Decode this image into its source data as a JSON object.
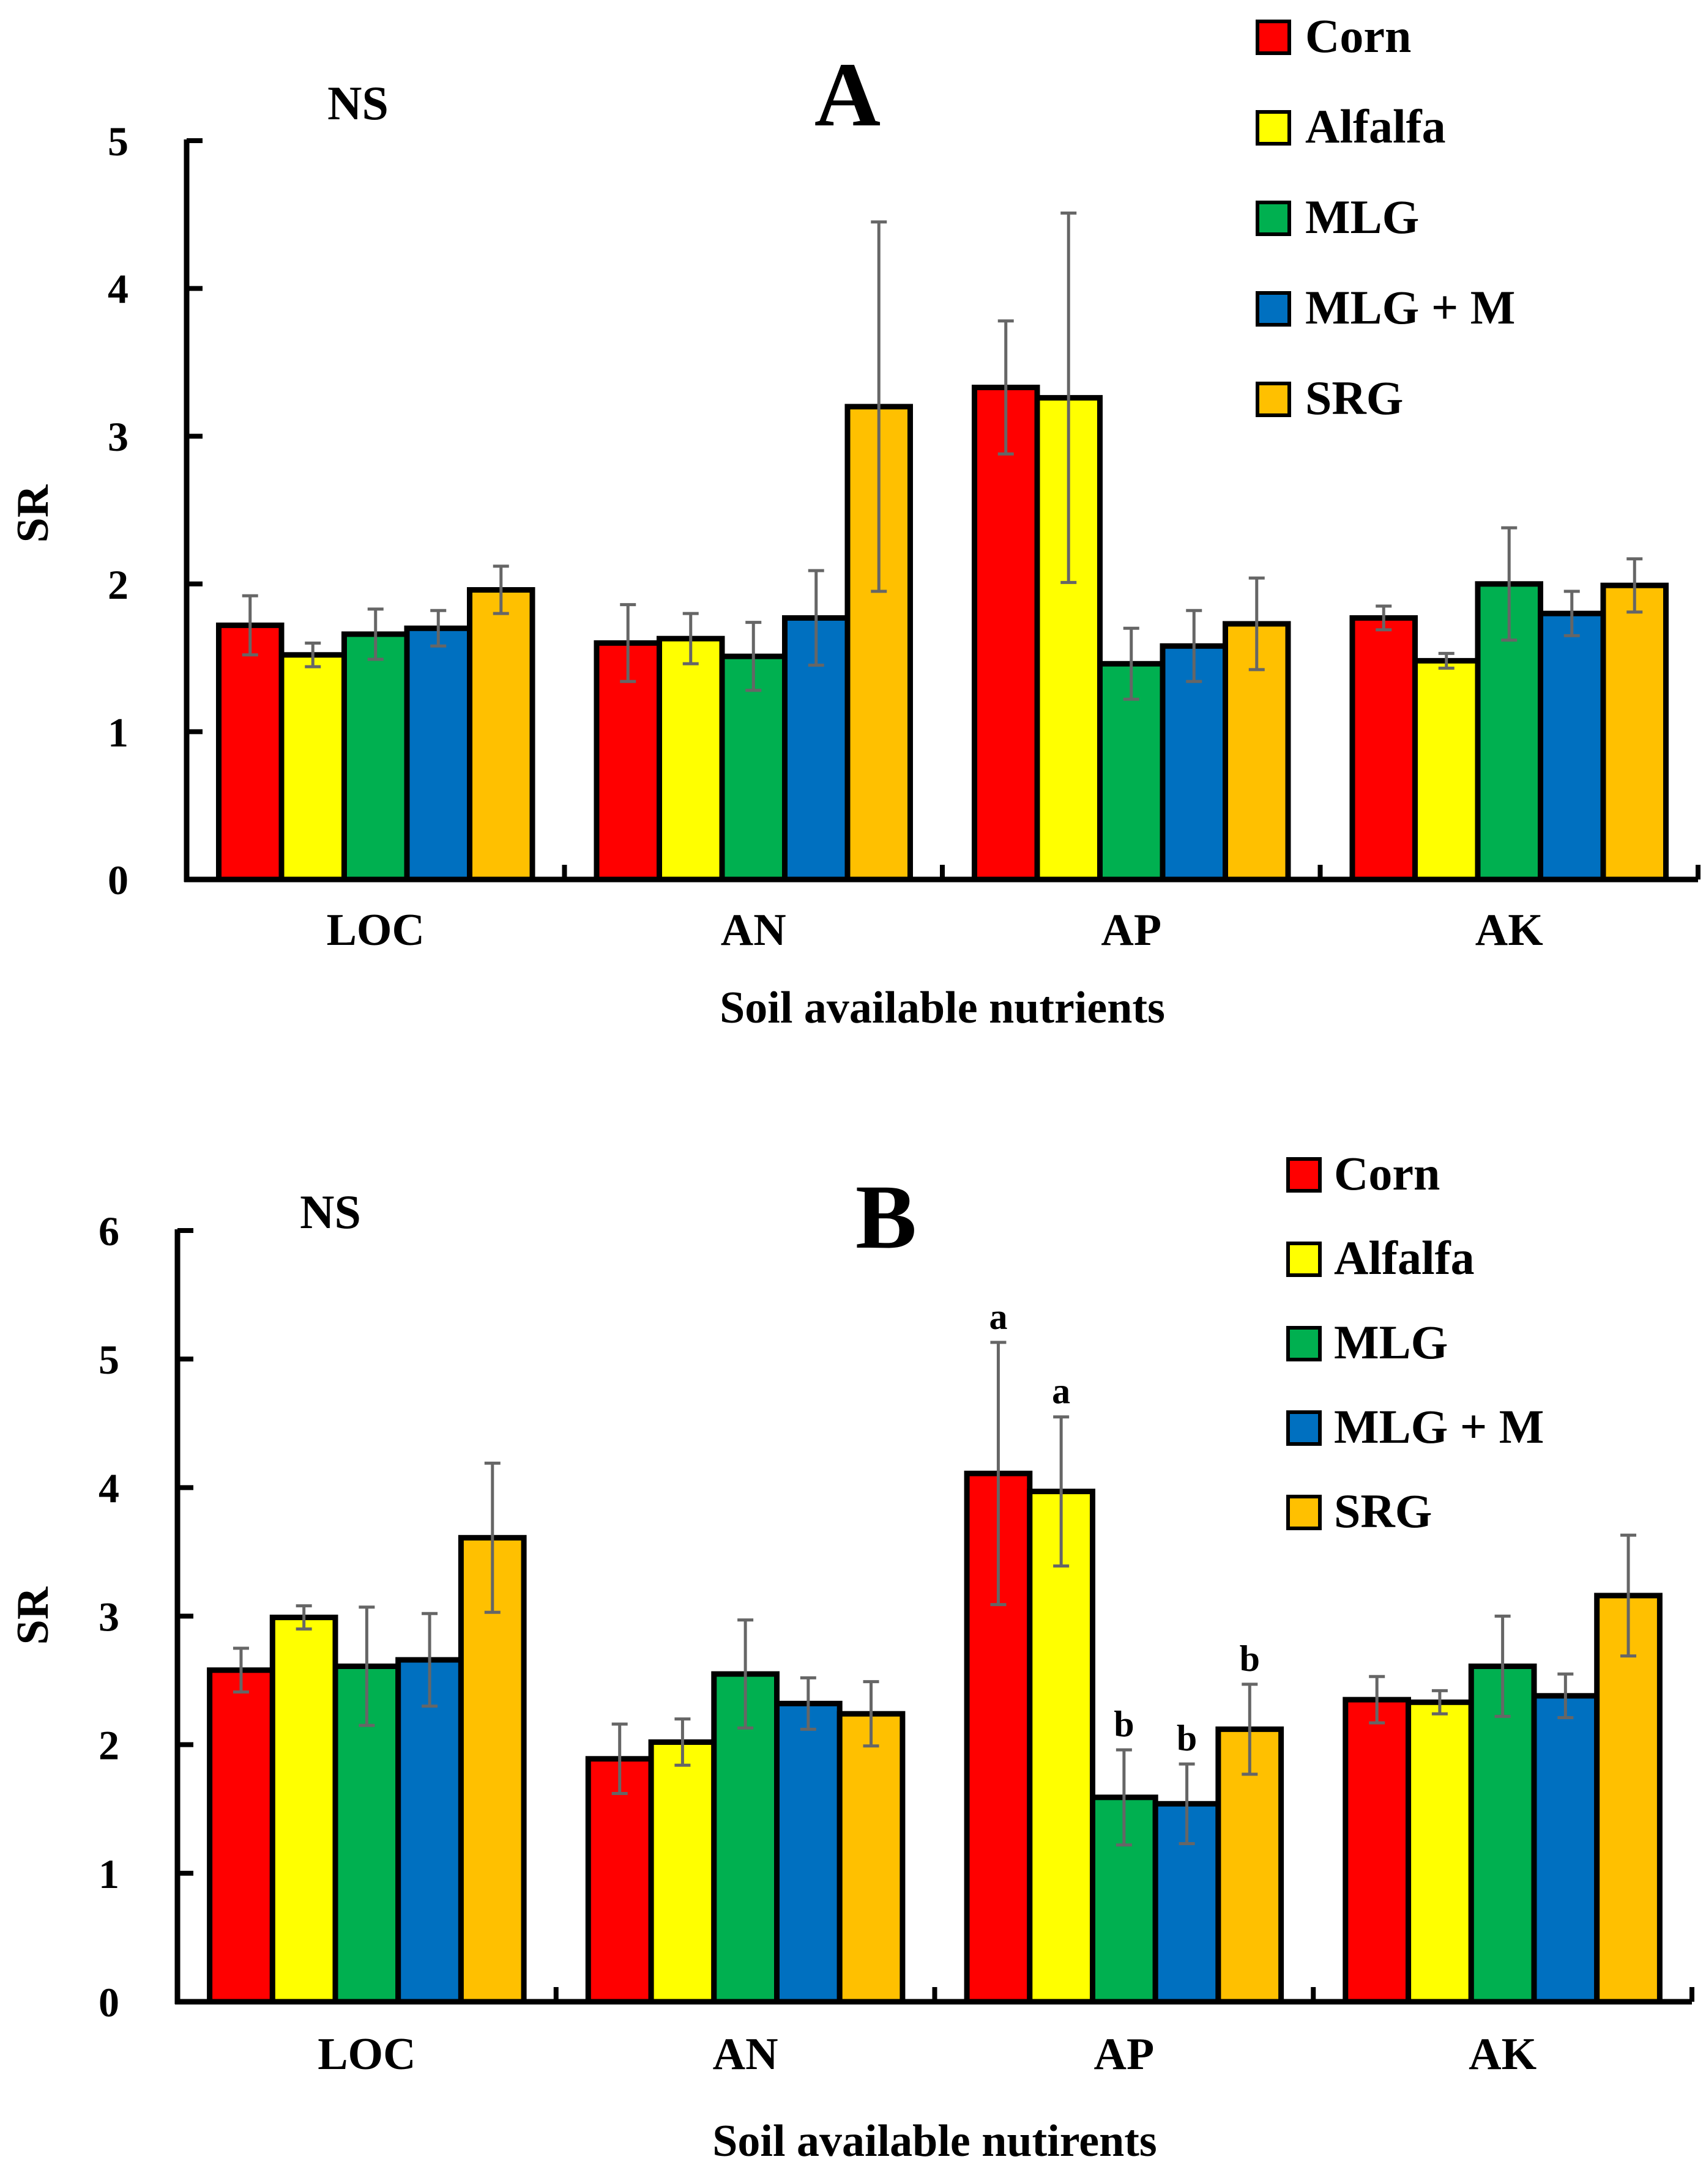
{
  "colors": {
    "Corn": "#FF0000",
    "Alfalfa": "#FFFF00",
    "MLG": "#00B050",
    "MLG + M": "#0070C0",
    "SRG": "#FFC000",
    "errorbar": "#666666",
    "axis": "#000000"
  },
  "chart_data": [
    {
      "type": "bar",
      "panel": "A",
      "title": "A",
      "annotation": "NS",
      "xlabel": "Soil available nutrients",
      "ylabel": "SR",
      "ylim": [
        0,
        5
      ],
      "yticks": [
        0,
        1,
        2,
        3,
        4,
        5
      ],
      "categories": [
        "LOC",
        "AN",
        "AP",
        "AK"
      ],
      "legend_position": "top-right",
      "series": [
        {
          "name": "Corn",
          "values": [
            1.72,
            1.6,
            3.33,
            1.77
          ],
          "errors": [
            0.2,
            0.26,
            0.45,
            0.08
          ],
          "labels": [
            "",
            "",
            "",
            ""
          ]
        },
        {
          "name": "Alfalfa",
          "values": [
            1.52,
            1.63,
            3.26,
            1.48
          ],
          "errors": [
            0.08,
            0.17,
            1.25,
            0.05
          ],
          "labels": [
            "",
            "",
            "",
            ""
          ]
        },
        {
          "name": "MLG",
          "values": [
            1.66,
            1.51,
            1.46,
            2.0
          ],
          "errors": [
            0.17,
            0.23,
            0.24,
            0.38
          ],
          "labels": [
            "",
            "",
            "",
            ""
          ]
        },
        {
          "name": "MLG + M",
          "values": [
            1.7,
            1.77,
            1.58,
            1.8
          ],
          "errors": [
            0.12,
            0.32,
            0.24,
            0.15
          ],
          "labels": [
            "",
            "",
            "",
            ""
          ]
        },
        {
          "name": "SRG",
          "values": [
            1.96,
            3.2,
            1.73,
            1.99
          ],
          "errors": [
            0.16,
            1.25,
            0.31,
            0.18
          ],
          "labels": [
            "",
            "",
            "",
            ""
          ]
        }
      ]
    },
    {
      "type": "bar",
      "panel": "B",
      "title": "B",
      "annotation": "NS",
      "xlabel": "Soil available nutirents",
      "ylabel": "SR",
      "ylim": [
        0,
        6
      ],
      "yticks": [
        0,
        1,
        2,
        3,
        4,
        5,
        6
      ],
      "categories": [
        "LOC",
        "AN",
        "AP",
        "AK"
      ],
      "legend_position": "top-right",
      "series": [
        {
          "name": "Corn",
          "values": [
            2.58,
            1.89,
            4.11,
            2.35
          ],
          "errors": [
            0.17,
            0.27,
            1.02,
            0.18
          ],
          "labels": [
            "",
            "",
            "a",
            ""
          ]
        },
        {
          "name": "Alfalfa",
          "values": [
            2.99,
            2.02,
            3.97,
            2.33
          ],
          "errors": [
            0.09,
            0.18,
            0.58,
            0.09
          ],
          "labels": [
            "",
            "",
            "a",
            ""
          ]
        },
        {
          "name": "MLG",
          "values": [
            2.61,
            2.55,
            1.59,
            2.61
          ],
          "errors": [
            0.46,
            0.42,
            0.37,
            0.39
          ],
          "labels": [
            "",
            "",
            "b",
            ""
          ]
        },
        {
          "name": "MLG + M",
          "values": [
            2.66,
            2.32,
            1.54,
            2.38
          ],
          "errors": [
            0.36,
            0.2,
            0.31,
            0.17
          ],
          "labels": [
            "",
            "",
            "b",
            ""
          ]
        },
        {
          "name": "SRG",
          "values": [
            3.61,
            2.24,
            2.12,
            3.16
          ],
          "errors": [
            0.58,
            0.25,
            0.35,
            0.47
          ],
          "labels": [
            "",
            "",
            "b",
            ""
          ]
        }
      ]
    }
  ]
}
